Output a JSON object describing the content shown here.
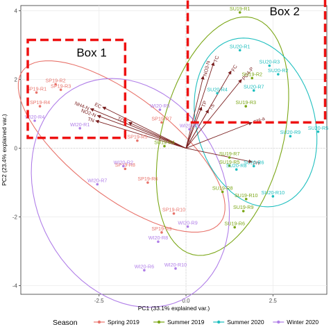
{
  "chart_data": {
    "type": "scatter",
    "xlabel": "PC1 (33.1% explained var.)",
    "ylabel": "PC2 (23.4% explained var.)",
    "xlim": [
      -4.75,
      4.05
    ],
    "ylim": [
      -4.25,
      4.15
    ],
    "xticks": [
      -2.5,
      0.0,
      2.5
    ],
    "yticks": [
      -4,
      -2,
      0,
      2,
      4
    ],
    "grid": "on",
    "legend": {
      "title": "Season",
      "position": "bottom",
      "entries": [
        {
          "name": "Spring 2019",
          "color": "#e8736b"
        },
        {
          "name": "Summer 2019",
          "color": "#7aa615"
        },
        {
          "name": "Summer 2020",
          "color": "#1fbfbf"
        },
        {
          "name": "Winter 2020",
          "color": "#b07ee8"
        }
      ]
    },
    "series": [
      {
        "name": "Spring 2019",
        "color": "#e8736b",
        "points": [
          {
            "label": "SP19-R1",
            "x": -4.3,
            "y": 1.62
          },
          {
            "label": "SP19-R2",
            "x": -3.75,
            "y": 1.86
          },
          {
            "label": "SP19-R3",
            "x": -3.6,
            "y": 1.7
          },
          {
            "label": "SP19-R4",
            "x": -4.2,
            "y": 1.22
          },
          {
            "label": "SP19-R5",
            "x": -1.4,
            "y": 0.22
          },
          {
            "label": "SP19-R6",
            "x": -1.1,
            "y": -1.0
          },
          {
            "label": "SP19-R7",
            "x": -0.7,
            "y": 0.75
          },
          {
            "label": "SP19-R8",
            "x": -1.75,
            "y": -0.6
          },
          {
            "label": "SP19-R9",
            "x": -0.7,
            "y": -2.45
          },
          {
            "label": "SP19-R10",
            "x": -0.35,
            "y": -1.9
          }
        ]
      },
      {
        "name": "Summer 2019",
        "color": "#7aa615",
        "points": [
          {
            "label": "SU19-R1",
            "x": 1.55,
            "y": 3.95
          },
          {
            "label": "SU19-R2",
            "x": 1.9,
            "y": 2.04
          },
          {
            "label": "SU19-R3",
            "x": 1.72,
            "y": 1.22
          },
          {
            "label": "SU19-R4",
            "x": -0.62,
            "y": 0.06
          },
          {
            "label": "SU19-R5",
            "x": 1.25,
            "y": -0.51
          },
          {
            "label": "SU19-R6",
            "x": 1.4,
            "y": -2.3
          },
          {
            "label": "SU19-R7",
            "x": 1.25,
            "y": -0.27
          },
          {
            "label": "SU19-R8",
            "x": 1.05,
            "y": -1.27
          },
          {
            "label": "SU19-R9",
            "x": 1.65,
            "y": -1.83
          },
          {
            "label": "SU19-R10",
            "x": 1.73,
            "y": -1.48
          }
        ]
      },
      {
        "name": "Summer 2020",
        "color": "#1fbfbf",
        "points": [
          {
            "label": "SU20-R1",
            "x": 1.55,
            "y": 2.85
          },
          {
            "label": "SU20-R2",
            "x": 2.65,
            "y": 2.15
          },
          {
            "label": "SU20-R3",
            "x": 2.4,
            "y": 2.4
          },
          {
            "label": "SU20-R4",
            "x": 0.9,
            "y": 1.6
          },
          {
            "label": "SU20-R5",
            "x": 3.8,
            "y": 0.48
          },
          {
            "label": "SU20-R6",
            "x": 1.95,
            "y": -0.52
          },
          {
            "label": "SU20-R7",
            "x": 1.95,
            "y": 1.68
          },
          {
            "label": "SU20-R8",
            "x": 1.45,
            "y": -0.62
          },
          {
            "label": "SU20-R9",
            "x": 3.0,
            "y": 0.35
          },
          {
            "label": "SU20-R10",
            "x": 2.5,
            "y": -1.4
          }
        ]
      },
      {
        "name": "Winter 2020",
        "color": "#b07ee8",
        "points": [
          {
            "label": "WI20-R1",
            "x": -3.05,
            "y": 0.58
          },
          {
            "label": "WI20-R2",
            "x": -1.8,
            "y": -0.52
          },
          {
            "label": "WI20-R3",
            "x": 0.1,
            "y": 0.55
          },
          {
            "label": "WI20-R4",
            "x": -4.35,
            "y": 0.8
          },
          {
            "label": "WI20-R5",
            "x": -0.75,
            "y": 1.12
          },
          {
            "label": "WI20-R6",
            "x": -1.2,
            "y": -3.55
          },
          {
            "label": "WI20-R7",
            "x": -2.55,
            "y": -1.05
          },
          {
            "label": "WI20-R8",
            "x": -0.8,
            "y": -2.72
          },
          {
            "label": "WI20-R9",
            "x": 0.05,
            "y": -2.28
          },
          {
            "label": "WI20-R10",
            "x": -0.3,
            "y": -3.5
          }
        ]
      }
    ],
    "ellipses": [
      {
        "series": "Spring 2019",
        "cx": -1.85,
        "cy": 0.05,
        "rx": 3.6,
        "ry": 1.45,
        "angle_deg": -38
      },
      {
        "series": "Summer 2019",
        "cx": 1.05,
        "cy": 0.35,
        "rx": 3.55,
        "ry": 1.75,
        "angle_deg": 76
      },
      {
        "series": "Summer 2020",
        "cx": 2.0,
        "cy": 0.75,
        "rx": 2.5,
        "ry": 1.7,
        "angle_deg": -75
      },
      {
        "series": "Winter 2020",
        "cx": -1.6,
        "cy": -1.3,
        "rx": 3.45,
        "ry": 2.7,
        "angle_deg": -65
      }
    ],
    "loadings": [
      {
        "label": "NO3-N",
        "x": 0.5,
        "y": 2.1
      },
      {
        "label": "TC",
        "x": 0.8,
        "y": 2.5
      },
      {
        "label": "FC",
        "x": 1.3,
        "y": 2.25
      },
      {
        "label": "PO4-P",
        "x": 1.6,
        "y": 2.0
      },
      {
        "label": "TP",
        "x": 0.45,
        "y": 1.2
      },
      {
        "label": "TS",
        "x": 0.65,
        "y": 1.12
      },
      {
        "label": "Chl-a",
        "x": 1.9,
        "y": 0.75
      },
      {
        "label": "pH",
        "x": 1.9,
        "y": -0.4
      },
      {
        "label": "EC",
        "x": -2.4,
        "y": 1.2
      },
      {
        "label": "NH4-N",
        "x": -2.75,
        "y": 1.15
      },
      {
        "label": "NO2-N",
        "x": -2.55,
        "y": 0.95
      },
      {
        "label": "TN",
        "x": -2.6,
        "y": 0.8
      },
      {
        "label": "TOC",
        "x": -1.65,
        "y": 0.75
      }
    ],
    "annotations": [
      {
        "text": "Box 1",
        "x0": -4.55,
        "x1": -1.75,
        "y0": 0.3,
        "y1": 3.15
      },
      {
        "text": "Box 2",
        "x0": 0.05,
        "x1": 4.0,
        "y0": 0.75,
        "y1": 4.35
      }
    ]
  }
}
